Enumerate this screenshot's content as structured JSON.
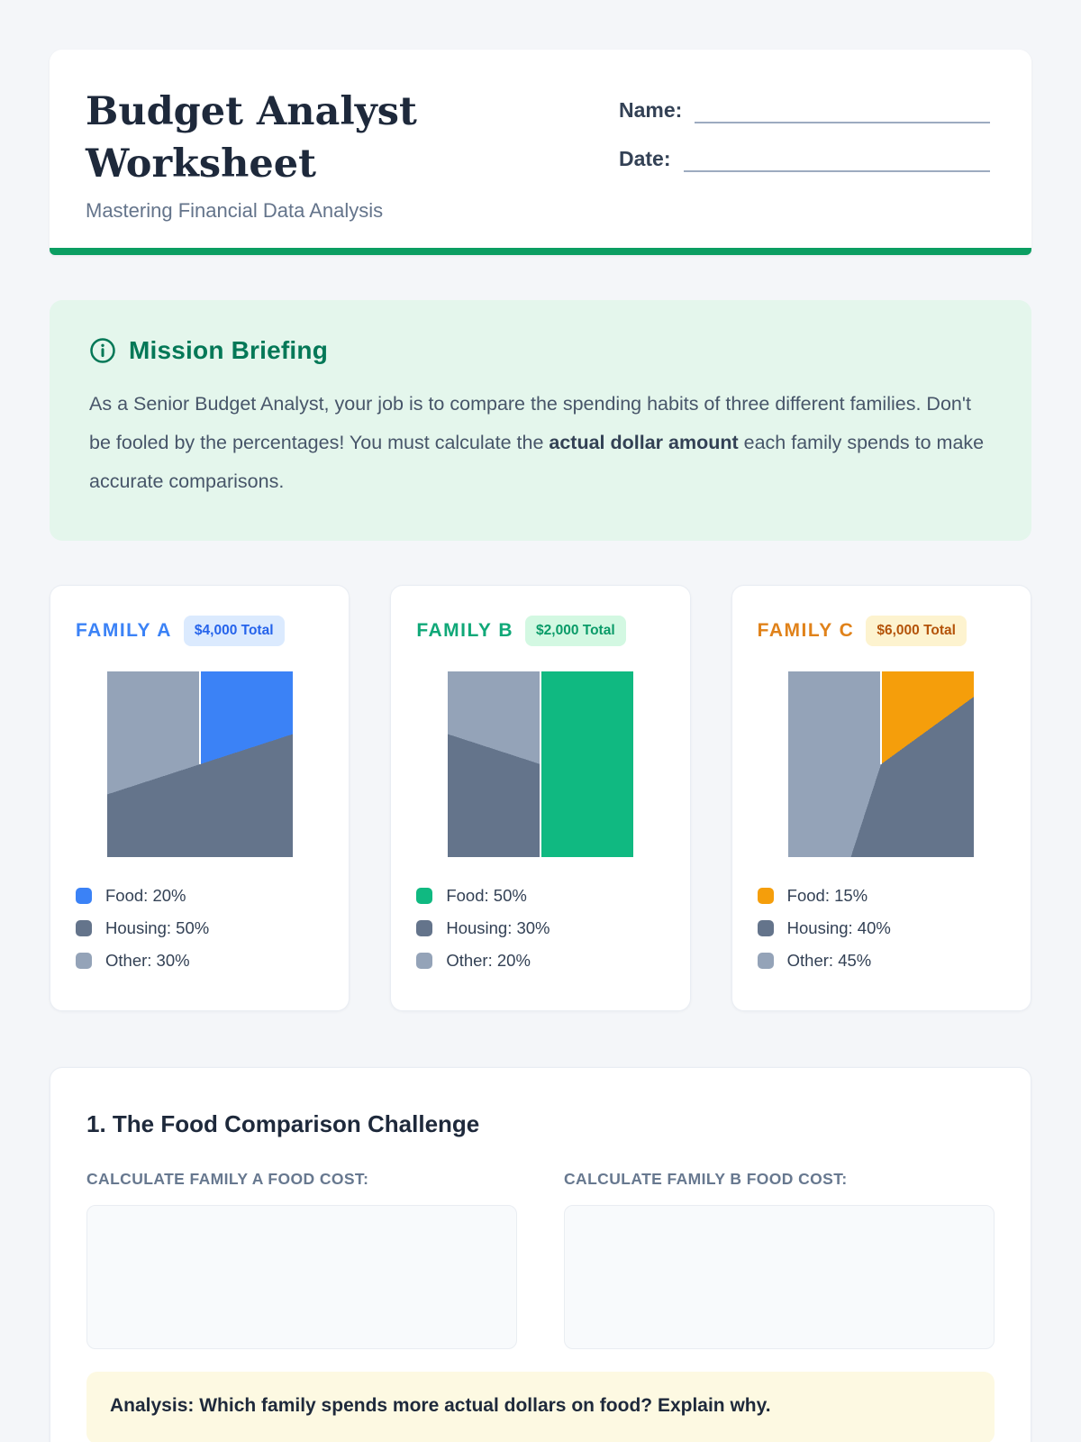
{
  "header": {
    "title": "Budget Analyst Worksheet",
    "subtitle": "Mastering Financial Data Analysis",
    "name_label": "Name:",
    "date_label": "Date:",
    "accent_bar_color": "#0b9e62"
  },
  "mission": {
    "heading": "Mission Briefing",
    "heading_color": "#047857",
    "background_color": "#e4f6ec",
    "body_before_bold": "As a Senior Budget Analyst, your job is to compare the spending habits of three different families. Don't be fooled by the percentages! You must calculate the ",
    "body_bold": "actual dollar amount",
    "body_after_bold": " each family spends to make accurate comparisons."
  },
  "chart_data": [
    {
      "type": "pie",
      "title": "FAMILY A",
      "total_label": "$4,000 Total",
      "total_dollars": 4000,
      "categories": [
        "Food",
        "Housing",
        "Other"
      ],
      "values_percent": [
        20,
        50,
        30
      ],
      "slice_colors": [
        "#3b82f6",
        "#64748b",
        "#94a3b8"
      ],
      "accent_color": "#3b82f6",
      "badge_bg": "#dbeafe",
      "badge_text_color": "#2563eb"
    },
    {
      "type": "pie",
      "title": "FAMILY B",
      "total_label": "$2,000 Total",
      "total_dollars": 2000,
      "categories": [
        "Food",
        "Housing",
        "Other"
      ],
      "values_percent": [
        50,
        30,
        20
      ],
      "slice_colors": [
        "#10b981",
        "#64748b",
        "#94a3b8"
      ],
      "accent_color": "#10a878",
      "badge_bg": "#d3f8e2",
      "badge_text_color": "#0a9b68"
    },
    {
      "type": "pie",
      "title": "FAMILY C",
      "total_label": "$6,000 Total",
      "total_dollars": 6000,
      "categories": [
        "Food",
        "Housing",
        "Other"
      ],
      "values_percent": [
        15,
        40,
        45
      ],
      "slice_colors": [
        "#f59e0b",
        "#64748b",
        "#94a3b8"
      ],
      "accent_color": "#e0821a",
      "badge_bg": "#fdf3cf",
      "badge_text_color": "#b45309"
    }
  ],
  "section1": {
    "heading": "1. The Food Comparison Challenge",
    "prompts": [
      {
        "label": "CALCULATE FAMILY A FOOD COST:"
      },
      {
        "label": "CALCULATE FAMILY B FOOD COST:"
      }
    ],
    "analysis_prompt": "Analysis: Which family spends more actual dollars on food? Explain why.",
    "analysis_bg": "#fdf9e2"
  }
}
